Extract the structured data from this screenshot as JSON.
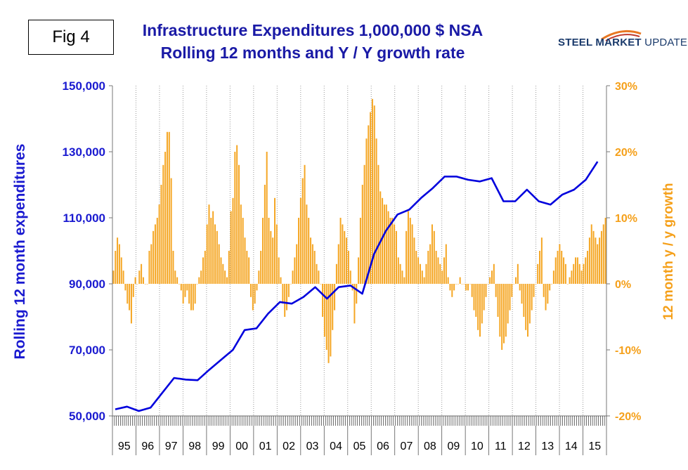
{
  "figure_label": "Fig 4",
  "title_line1": "Infrastructure Expenditures 1,000,000 $ NSA",
  "title_line2": "Rolling 12 months and Y / Y growth rate",
  "logo": {
    "text_bold": "STEEL MARKET",
    "text_light": " UPDATE",
    "icon": "swoosh-icon"
  },
  "colors": {
    "line": "#0000dd",
    "bars": "#f5a623",
    "left_axis_text": "#1a1ad0",
    "right_axis_text": "#f5a01a"
  },
  "chart_data": {
    "type": "bar+line",
    "ylabel_left": "Rolling 12 month expenditures",
    "ylabel_right": "12 month y / y growth",
    "ylim_left": [
      50000,
      150000
    ],
    "ylim_right": [
      -20,
      30
    ],
    "yticks_left": [
      "50,000",
      "70,000",
      "90,000",
      "110,000",
      "130,000",
      "150,000"
    ],
    "yticks_right": [
      "-20%",
      "-10%",
      "0%",
      "10%",
      "20%",
      "30%"
    ],
    "xtick_labels": [
      "95",
      "96",
      "97",
      "98",
      "99",
      "00",
      "01",
      "02",
      "03",
      "04",
      "05",
      "06",
      "07",
      "08",
      "09",
      "10",
      "11",
      "12",
      "13",
      "14",
      "15"
    ],
    "grid": "vertical dotted lines",
    "legend": "none",
    "series": [
      {
        "name": "Rolling 12 month expenditures",
        "type": "line",
        "axis": "left",
        "points": [
          [
            "95",
            52000
          ],
          [
            "95.5",
            52800
          ],
          [
            "96",
            51500
          ],
          [
            "96.5",
            52500
          ],
          [
            "97",
            57000
          ],
          [
            "97.5",
            61500
          ],
          [
            "98",
            61000
          ],
          [
            "98.5",
            60800
          ],
          [
            "99",
            64000
          ],
          [
            "99.5",
            67000
          ],
          [
            "00",
            70000
          ],
          [
            "00.5",
            76000
          ],
          [
            "01",
            76500
          ],
          [
            "01.5",
            81000
          ],
          [
            "02",
            84500
          ],
          [
            "02.5",
            84000
          ],
          [
            "03",
            86000
          ],
          [
            "03.5",
            89000
          ],
          [
            "04",
            85500
          ],
          [
            "04.5",
            89000
          ],
          [
            "05",
            89500
          ],
          [
            "05.5",
            87000
          ],
          [
            "06",
            99000
          ],
          [
            "06.5",
            106000
          ],
          [
            "07",
            111000
          ],
          [
            "07.5",
            112500
          ],
          [
            "08",
            116000
          ],
          [
            "08.5",
            119000
          ],
          [
            "09",
            122500
          ],
          [
            "09.5",
            122500
          ],
          [
            "10",
            121500
          ],
          [
            "10.5",
            121000
          ],
          [
            "11",
            122000
          ],
          [
            "11.5",
            115000
          ],
          [
            "12",
            115000
          ],
          [
            "12.5",
            118500
          ],
          [
            "13",
            115000
          ],
          [
            "13.5",
            114000
          ],
          [
            "14",
            117000
          ],
          [
            "14.5",
            118500
          ],
          [
            "15",
            121500
          ],
          [
            "15.5",
            127000
          ]
        ]
      },
      {
        "name": "12 month y / y growth",
        "type": "bar",
        "axis": "right",
        "note": "monthly bars, values in %",
        "values": [
          2,
          5,
          7,
          6,
          4,
          2,
          -1,
          -3,
          -4,
          -6,
          -2,
          1,
          0,
          2,
          3,
          1,
          0,
          0,
          5,
          6,
          8,
          9,
          10,
          12,
          15,
          18,
          20,
          23,
          23,
          16,
          5,
          2,
          1,
          0,
          -1,
          -3,
          -2,
          -1,
          -3,
          -4,
          -4,
          -3,
          0,
          1,
          2,
          4,
          5,
          9,
          12,
          10,
          11,
          9,
          8,
          6,
          4,
          3,
          2,
          1,
          5,
          11,
          13,
          20,
          21,
          18,
          12,
          10,
          7,
          5,
          4,
          -2,
          -4,
          -3,
          -1,
          2,
          5,
          10,
          15,
          20,
          10,
          8,
          7,
          13,
          9,
          4,
          1,
          -3,
          -5,
          -4,
          -2,
          0,
          2,
          4,
          6,
          10,
          13,
          16,
          18,
          12,
          10,
          7,
          6,
          5,
          3,
          2,
          0,
          -5,
          -8,
          -10,
          -12,
          -11,
          -7,
          -4,
          3,
          6,
          10,
          9,
          8,
          7,
          5,
          2,
          -1,
          -6,
          -3,
          4,
          10,
          15,
          18,
          22,
          24,
          26,
          28,
          27,
          22,
          18,
          14,
          13,
          12,
          12,
          11,
          10,
          10,
          9,
          8,
          4,
          3,
          2,
          1,
          8,
          11,
          10,
          9,
          7,
          5,
          4,
          3,
          2,
          1,
          3,
          5,
          6,
          9,
          8,
          5,
          4,
          3,
          2,
          4,
          6,
          1,
          -1,
          -2,
          -1,
          0,
          0,
          1,
          0,
          0,
          -1,
          -1,
          0,
          -2,
          -4,
          -5,
          -7,
          -8,
          -6,
          -4,
          -2,
          0,
          1,
          2,
          3,
          -2,
          -5,
          -8,
          -10,
          -9,
          -8,
          -6,
          -4,
          -2,
          0,
          1,
          3,
          -1,
          -3,
          -5,
          -7,
          -8,
          -6,
          -4,
          -2,
          0,
          3,
          5,
          7,
          -2,
          -4,
          -3,
          -1,
          0,
          2,
          4,
          5,
          6,
          5,
          4,
          3,
          0,
          1,
          2,
          3,
          4,
          4,
          3,
          2,
          3,
          4,
          5,
          7,
          9,
          8,
          7,
          6,
          7,
          8,
          9,
          10
        ]
      }
    ]
  }
}
